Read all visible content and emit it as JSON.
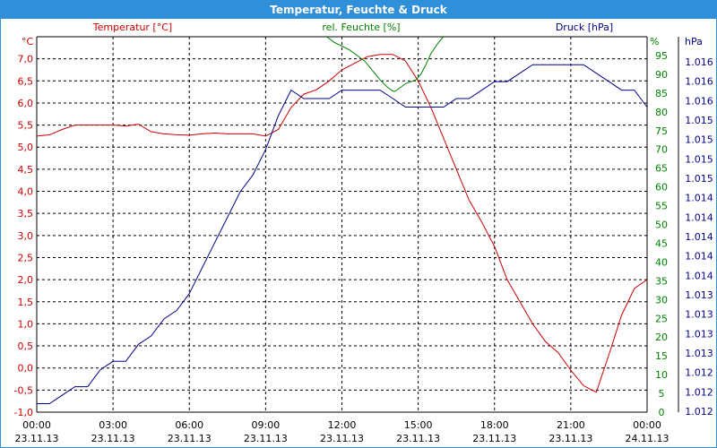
{
  "window": {
    "title": "Temperatur, Feuchte & Druck"
  },
  "chart_data": {
    "type": "line",
    "title": "Temperatur, Feuchte & Druck",
    "grid": true,
    "colors": {
      "temperature": "#cc0000",
      "humidity": "#008000",
      "pressure": "#00008b",
      "titlebar": "#2f8fd8"
    },
    "x_ticks": [
      {
        "time": "00:00",
        "date": "23.11.13"
      },
      {
        "time": "03:00",
        "date": "23.11.13"
      },
      {
        "time": "06:00",
        "date": "23.11.13"
      },
      {
        "time": "09:00",
        "date": "23.11.13"
      },
      {
        "time": "12:00",
        "date": "23.11.13"
      },
      {
        "time": "15:00",
        "date": "23.11.13"
      },
      {
        "time": "18:00",
        "date": "23.11.13"
      },
      {
        "time": "21:00",
        "date": "23.11.13"
      },
      {
        "time": "00:00",
        "date": "24.11.13"
      }
    ],
    "xlim_hours": [
      0,
      24
    ],
    "axes": {
      "temperature": {
        "label": "Temperatur [°C]",
        "unit": "°C",
        "ylim": [
          -1.0,
          7.5
        ],
        "ticks": [
          "-1,0",
          "-0,5",
          "0,0",
          "0,5",
          "1,0",
          "1,5",
          "2,0",
          "2,5",
          "3,0",
          "3,5",
          "4,0",
          "4,5",
          "5,0",
          "5,5",
          "6,0",
          "6,5",
          "7,0"
        ]
      },
      "humidity": {
        "label": "rel. Feuchte [%]",
        "unit": "%",
        "ylim": [
          0,
          100
        ],
        "ticks": [
          "0",
          "5",
          "10",
          "15",
          "20",
          "25",
          "30",
          "35",
          "40",
          "45",
          "50",
          "55",
          "60",
          "65",
          "70",
          "75",
          "80",
          "85",
          "90",
          "95"
        ]
      },
      "pressure": {
        "label": "Druck [hPa]",
        "unit": "hPa",
        "ticks": [
          "1.012",
          "1.012",
          "1.012",
          "1.013",
          "1.013",
          "1.013",
          "1.013",
          "1.014",
          "1.014",
          "1.014",
          "1.014",
          "1.014",
          "1.015",
          "1.015",
          "1.015",
          "1.015",
          "1.016",
          "1.016",
          "1.016"
        ]
      }
    },
    "series": [
      {
        "name": "Temperatur [°C]",
        "axis": "temperature",
        "x": [
          0,
          0.5,
          1,
          1.5,
          2,
          2.5,
          3,
          3.5,
          4,
          4.5,
          5,
          5.5,
          6,
          6.5,
          7,
          7.5,
          8,
          8.5,
          9,
          9.5,
          10,
          10.5,
          11,
          11.5,
          12,
          12.5,
          13,
          13.5,
          14,
          14.5,
          15,
          15.5,
          16,
          16.5,
          17,
          17.5,
          18,
          18.5,
          19,
          19.5,
          20,
          20.5,
          21,
          21.5,
          22,
          22.5,
          23,
          23.5,
          24
        ],
        "values": [
          5.25,
          5.28,
          5.4,
          5.5,
          5.5,
          5.5,
          5.5,
          5.48,
          5.52,
          5.35,
          5.3,
          5.28,
          5.27,
          5.3,
          5.32,
          5.3,
          5.3,
          5.3,
          5.25,
          5.4,
          5.9,
          6.2,
          6.3,
          6.5,
          6.75,
          6.9,
          7.05,
          7.1,
          7.1,
          6.95,
          6.5,
          5.9,
          5.2,
          4.5,
          3.8,
          3.3,
          2.75,
          2.0,
          1.5,
          1.0,
          0.6,
          0.35,
          -0.05,
          -0.4,
          -0.55,
          0.3,
          1.2,
          1.8,
          2.0
        ]
      },
      {
        "name": "rel. Feuchte [%]",
        "axis": "humidity",
        "x": [
          11.4,
          11.7,
          12.0,
          12.3,
          12.6,
          12.9,
          13.2,
          13.5,
          13.8,
          14.0,
          14.1,
          14.3,
          14.5,
          14.7,
          14.9,
          15.1,
          15.3,
          15.5,
          15.8,
          16.0
        ],
        "values": [
          100,
          98.5,
          97.5,
          96.5,
          95.0,
          93.5,
          91.0,
          88.5,
          86.5,
          85.5,
          85.5,
          86.5,
          87.5,
          88.0,
          88.5,
          90.0,
          92.5,
          95.5,
          98.5,
          100
        ]
      },
      {
        "name": "Druck [hPa]",
        "axis": "pressure",
        "x": [
          0,
          0.5,
          1,
          1.5,
          2,
          2.5,
          3,
          3.5,
          4,
          4.5,
          5,
          5.5,
          6,
          6.5,
          7,
          7.5,
          8,
          8.5,
          9,
          9.5,
          10,
          10.5,
          11,
          11.5,
          12,
          12.5,
          13,
          13.5,
          14,
          14.5,
          15,
          15.5,
          16,
          16.5,
          17,
          17.5,
          18,
          18.5,
          19,
          19.5,
          20,
          20.5,
          21,
          21.5,
          22,
          22.5,
          23,
          23.5,
          24
        ],
        "values": [
          1.012,
          1.012,
          1.0121,
          1.0122,
          1.0122,
          1.0124,
          1.0125,
          1.0125,
          1.0127,
          1.0128,
          1.013,
          1.0131,
          1.0133,
          1.0136,
          1.0139,
          1.0142,
          1.0145,
          1.0147,
          1.015,
          1.0154,
          1.0157,
          1.0156,
          1.0156,
          1.0156,
          1.0157,
          1.0157,
          1.0157,
          1.0157,
          1.0156,
          1.0155,
          1.0155,
          1.0155,
          1.0155,
          1.0156,
          1.0156,
          1.0157,
          1.0158,
          1.0158,
          1.0159,
          1.016,
          1.016,
          1.016,
          1.016,
          1.016,
          1.0159,
          1.0158,
          1.0157,
          1.0157,
          1.0155
        ]
      }
    ]
  }
}
